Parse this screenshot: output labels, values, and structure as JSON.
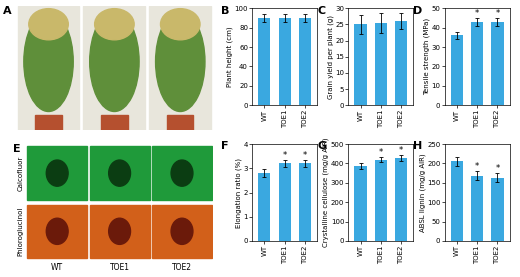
{
  "image_panels": [
    {
      "panel": "A"
    },
    {
      "panel": "E",
      "row_labels": [
        "Calcofluor",
        "Phloroglucinol"
      ],
      "column_labels": [
        "WT",
        "TOE1",
        "TOE2"
      ]
    }
  ],
  "chart_data": [
    {
      "panel": "B",
      "type": "bar",
      "y_label": "Plant height (cm)",
      "categories": [
        "WT",
        "TOE1",
        "TOE2"
      ],
      "values": [
        90,
        90,
        90
      ],
      "errors": [
        4,
        4,
        4
      ],
      "significance": [
        null,
        null,
        null
      ],
      "color": "#3aa8e0",
      "ylim": [
        0,
        100
      ],
      "yticks": [
        0,
        20,
        40,
        60,
        80,
        100
      ]
    },
    {
      "panel": "C",
      "type": "bar",
      "y_label": "Grain yield per plant (g)",
      "categories": [
        "WT",
        "TOE1",
        "TOE2"
      ],
      "values": [
        25,
        25.5,
        26
      ],
      "errors": [
        3,
        3,
        2.5
      ],
      "significance": [
        null,
        null,
        null
      ],
      "color": "#3aa8e0",
      "ylim": [
        0,
        30
      ],
      "yticks": [
        0,
        5,
        10,
        15,
        20,
        25,
        30
      ]
    },
    {
      "panel": "D",
      "type": "bar",
      "y_label": "Tensile strength (MPa)",
      "categories": [
        "WT",
        "TOE1",
        "TOE2"
      ],
      "values": [
        36,
        43,
        43
      ],
      "errors": [
        2,
        2,
        2
      ],
      "significance": [
        null,
        "*",
        "*"
      ],
      "color": "#3aa8e0",
      "ylim": [
        0,
        50
      ],
      "yticks": [
        0,
        10,
        20,
        30,
        40,
        50
      ]
    },
    {
      "panel": "F",
      "type": "bar",
      "y_label": "Elongation ratio (%)",
      "categories": [
        "WT",
        "TOE1",
        "TOE2"
      ],
      "values": [
        2.8,
        3.2,
        3.2
      ],
      "errors": [
        0.15,
        0.15,
        0.15
      ],
      "significance": [
        null,
        "*",
        "*"
      ],
      "color": "#3aa8e0",
      "ylim": [
        0,
        4
      ],
      "yticks": [
        0,
        1,
        2,
        3,
        4
      ]
    },
    {
      "panel": "G",
      "type": "bar",
      "y_label": "Crystalline cellulose (mg/g AIR)",
      "categories": [
        "WT",
        "TOE1",
        "TOE2"
      ],
      "values": [
        385,
        420,
        430
      ],
      "errors": [
        15,
        15,
        15
      ],
      "significance": [
        null,
        "*",
        "*"
      ],
      "color": "#3aa8e0",
      "ylim": [
        0,
        500
      ],
      "yticks": [
        0,
        100,
        200,
        300,
        400,
        500
      ]
    },
    {
      "panel": "H",
      "type": "bar",
      "y_label": "ABSL lignin (mg/g AIR)",
      "categories": [
        "WT",
        "TOE1",
        "TOE2"
      ],
      "values": [
        205,
        168,
        163
      ],
      "errors": [
        12,
        12,
        12
      ],
      "significance": [
        null,
        "*",
        "*"
      ],
      "color": "#3aa8e0",
      "ylim": [
        0,
        250
      ],
      "yticks": [
        0,
        50,
        100,
        150,
        200,
        250
      ]
    }
  ]
}
